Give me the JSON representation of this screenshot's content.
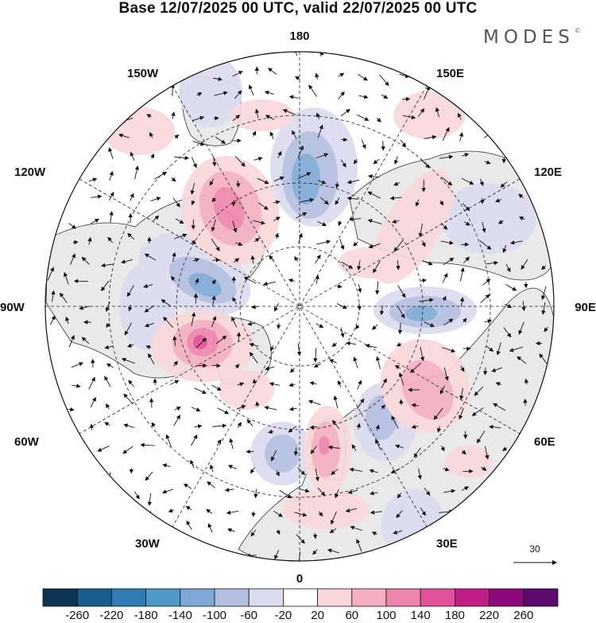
{
  "title": "Base 12/07/2025 00 UTC, valid 22/07/2025 00 UTC",
  "brand": "MODES",
  "brand_mark": "©",
  "longitude_labels": {
    "top": "180",
    "bottom": "0",
    "left": "90W",
    "right": "90E",
    "upper_left_1": "150W",
    "upper_left_2": "120W",
    "lower_left_1": "60W",
    "lower_left_2": "30W",
    "upper_right_1": "150E",
    "upper_right_2": "120E",
    "lower_right_1": "60E",
    "lower_right_2": "30E"
  },
  "reference_vector": {
    "label": "30"
  },
  "colorbar": {
    "labels": [
      "-260",
      "-220",
      "-180",
      "-140",
      "-100",
      "-60",
      "-20",
      "20",
      "60",
      "100",
      "140",
      "180",
      "220",
      "260"
    ],
    "colors": [
      "#0d3552",
      "#165d8c",
      "#2f7db5",
      "#4f99c8",
      "#7ea9d6",
      "#b3bfe0",
      "#dcdcef",
      "#ffffff",
      "#f9d7da",
      "#f4b0c2",
      "#ee85ad",
      "#e2519a",
      "#c21f86",
      "#8c0a7c",
      "#5c0a6e"
    ]
  },
  "map": {
    "projection": "north-polar-stereographic",
    "contour_colors": {
      "neg_light": "#dcdcef",
      "neg_mid": "#b3bfe0",
      "neg_strong": "#7ea9d6",
      "neg_core": "#4f99c8",
      "pos_light": "#f9d7da",
      "pos_mid": "#f4b0c2",
      "pos_strong": "#ee85ad",
      "pos_core": "#e2519a",
      "land": "#e9e9e9",
      "coast": "#333333"
    }
  }
}
